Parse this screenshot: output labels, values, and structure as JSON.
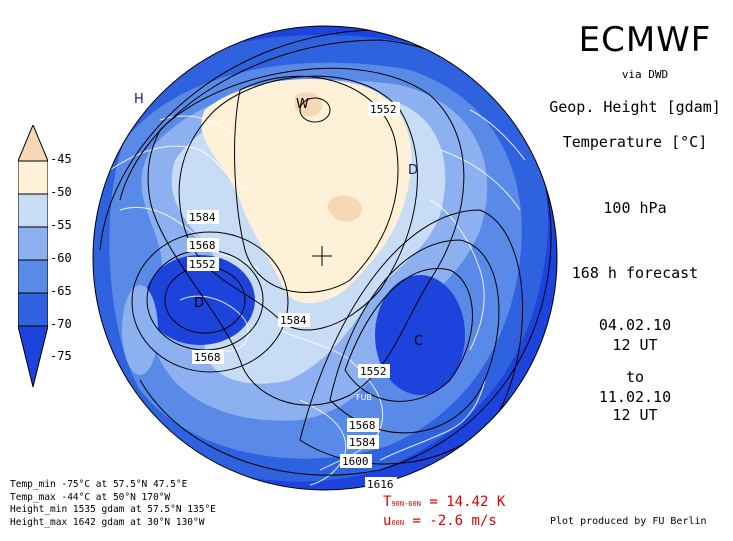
{
  "header": {
    "title": "ECMWF",
    "source": "via DWD",
    "parameter1": "Geop. Height [gdam]",
    "parameter2": "Temperature [°C]",
    "level": "100 hPa",
    "forecast": "168 h forecast",
    "init_date": "04.02.10",
    "init_time": "12 UT",
    "to_label": "to",
    "valid_date": "11.02.10",
    "valid_time": "12 UT"
  },
  "legend": {
    "labels": [
      "-45",
      "-50",
      "-55",
      "-60",
      "-65",
      "-70",
      "-75"
    ],
    "colors": [
      "#f6d9b4",
      "#fff0d8",
      "#c8dcf6",
      "#8cb0f0",
      "#5a8ae8",
      "#2f62de",
      "#1c44dc"
    ]
  },
  "map": {
    "contour_labels": [
      "1552",
      "1584",
      "1568",
      "1552",
      "1584",
      "1568",
      "1552",
      "1568",
      "1584",
      "1600",
      "1616"
    ],
    "markers": {
      "high1": "H",
      "high2": "W",
      "low1": "D",
      "low2": "D",
      "low3": "C",
      "station": "FUB"
    }
  },
  "stats": {
    "temp_min": "Temp_min -75°C at 57.5°N 47.5°E",
    "temp_max": "Temp_max -44°C at 50°N 170°W",
    "height_min": "Height_min 1535 gdam at 57.5°N 135°E",
    "height_max": "Height_max 1642 gdam at 30°N 130°W"
  },
  "indices": {
    "t_label": "T",
    "t_sub": "90N-60N",
    "t_value": "= 14.42 K",
    "u_label": "u",
    "u_sub": "60N",
    "u_value": "= -2.6 m/s"
  },
  "credit": "Plot produced by FU Berlin"
}
